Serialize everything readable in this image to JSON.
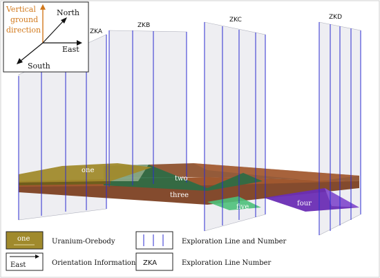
{
  "compass": {
    "north": "North",
    "east": "East",
    "south": "South",
    "vertical_lines": [
      "Vertical",
      "ground",
      "direction"
    ],
    "vertical_color": "#d2791c"
  },
  "exploration_lines": [
    "ZKA",
    "ZKB",
    "ZKC",
    "ZKD"
  ],
  "orebodies": {
    "one": "one",
    "two": "two",
    "three": "three",
    "four": "four",
    "five": "five"
  },
  "colors": {
    "uranium_orebody": "#a08a2c",
    "two_layer": "#2f6b45",
    "three_layer": "#7a3c1c",
    "four_layer": "#6a2db4",
    "five_layer": "#4cc07a",
    "borehole_line": "#2b2bd0",
    "panel": "#c9cbd6"
  },
  "legend": {
    "swatch_text": "one",
    "orebody_label": "Uranium-Orebody",
    "orientation_symbol": "East",
    "orientation_label": "Orientation Information",
    "exploration_label": "Exploration Line and Number",
    "number_symbol": "ZKA",
    "number_label": "Exploration Line Number"
  }
}
